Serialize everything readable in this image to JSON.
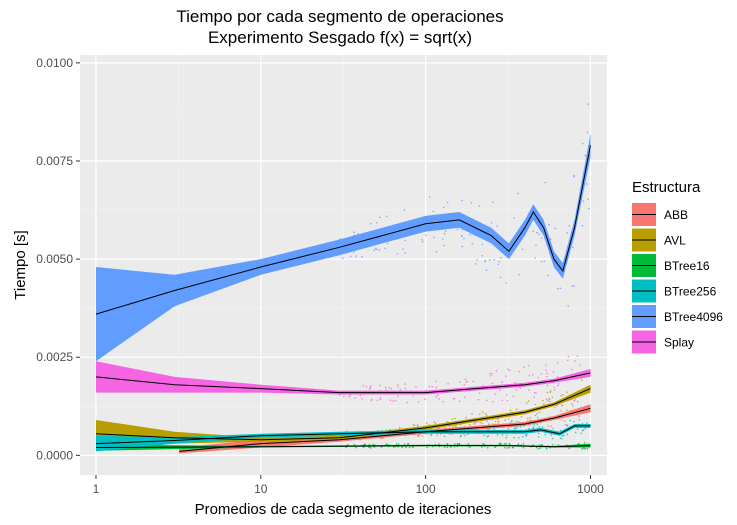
{
  "chart_data": {
    "type": "scatter",
    "title": "Tiempo por cada segmento de operaciones",
    "subtitle": "Experimento Sesgado f(x) = sqrt(x)",
    "xlabel": "Promedios de cada segmento de iteraciones",
    "ylabel": "Tiempo [s]",
    "x_scale": "log10",
    "xlim": [
      0.8,
      1260
    ],
    "ylim": [
      -0.0005,
      0.0102
    ],
    "x_ticks": [
      1,
      10,
      100,
      1000
    ],
    "x_tick_labels": [
      "1",
      "10",
      "100",
      "1000"
    ],
    "y_ticks": [
      0.0,
      0.0025,
      0.005,
      0.0075,
      0.01
    ],
    "y_tick_labels": [
      "0.0000",
      "0.0025",
      "0.0050",
      "0.0075",
      "0.0100"
    ],
    "grid": true,
    "legend": {
      "title": "Estructura",
      "position": "right"
    },
    "series": [
      {
        "name": "ABB",
        "color": "#F8766D",
        "x": [
          3.2,
          10,
          30,
          100,
          200,
          400,
          600,
          1000
        ],
        "y": [
          0.0001,
          0.0003,
          0.0004,
          0.0006,
          0.0007,
          0.0008,
          0.00095,
          0.0012
        ],
        "ymin": [
          5e-05,
          0.0002,
          0.00035,
          0.00055,
          0.00065,
          0.00075,
          0.0009,
          0.0011
        ],
        "ymax": [
          0.0002,
          0.0004,
          0.00045,
          0.00065,
          0.00075,
          0.00085,
          0.001,
          0.0013
        ]
      },
      {
        "name": "AVL",
        "color": "#B79F00",
        "x": [
          1,
          3,
          10,
          30,
          100,
          200,
          400,
          600,
          1000
        ],
        "y": [
          0.00055,
          0.00045,
          0.0004,
          0.00045,
          0.0007,
          0.0009,
          0.0011,
          0.0013,
          0.0017
        ],
        "ymin": [
          0.0002,
          0.0003,
          0.00035,
          0.0004,
          0.00065,
          0.00085,
          0.00105,
          0.00125,
          0.0016
        ],
        "ymax": [
          0.0009,
          0.0006,
          0.00045,
          0.0005,
          0.00075,
          0.00095,
          0.00115,
          0.00135,
          0.0018
        ]
      },
      {
        "name": "BTree16",
        "color": "#00BA38",
        "x": [
          1,
          10,
          100,
          300,
          600,
          1000
        ],
        "y": [
          0.0002,
          0.00022,
          0.00025,
          0.00025,
          0.00022,
          0.00025
        ],
        "ymin": [
          0.00012,
          0.0002,
          0.00023,
          0.00023,
          0.0002,
          0.0002
        ],
        "ymax": [
          0.00028,
          0.00024,
          0.00027,
          0.00027,
          0.00024,
          0.0003
        ]
      },
      {
        "name": "BTree256",
        "color": "#00BFC4",
        "x": [
          1,
          3,
          10,
          30,
          100,
          200,
          400,
          500,
          650,
          800,
          1000
        ],
        "y": [
          0.0003,
          0.00038,
          0.0005,
          0.00055,
          0.0006,
          0.0006,
          0.0006,
          0.00065,
          0.00055,
          0.00075,
          0.00075
        ],
        "ymin": [
          0.0001,
          0.0003,
          0.00045,
          0.0005,
          0.00055,
          0.00055,
          0.00055,
          0.0006,
          0.0005,
          0.0007,
          0.0007
        ],
        "ymax": [
          0.0005,
          0.00046,
          0.00055,
          0.0006,
          0.00065,
          0.00065,
          0.00065,
          0.0007,
          0.0006,
          0.0008,
          0.0008
        ]
      },
      {
        "name": "BTree4096",
        "color": "#619CFF",
        "x": [
          1,
          3,
          10,
          30,
          100,
          160,
          250,
          320,
          400,
          450,
          520,
          600,
          680,
          800,
          1000
        ],
        "y": [
          0.0036,
          0.0042,
          0.0048,
          0.0053,
          0.0059,
          0.006,
          0.0056,
          0.0052,
          0.0058,
          0.0062,
          0.0058,
          0.005,
          0.0047,
          0.0058,
          0.0079
        ],
        "ymin": [
          0.0024,
          0.0038,
          0.0046,
          0.0051,
          0.0057,
          0.0058,
          0.0054,
          0.005,
          0.0056,
          0.006,
          0.0056,
          0.0048,
          0.0045,
          0.0056,
          0.0076
        ],
        "ymax": [
          0.0048,
          0.0046,
          0.005,
          0.0055,
          0.0061,
          0.0062,
          0.0058,
          0.0054,
          0.006,
          0.0064,
          0.006,
          0.0052,
          0.0049,
          0.006,
          0.0082
        ]
      },
      {
        "name": "Splay",
        "color": "#F564E3",
        "x": [
          1,
          3,
          10,
          30,
          100,
          200,
          400,
          600,
          1000
        ],
        "y": [
          0.002,
          0.0018,
          0.0017,
          0.0016,
          0.0016,
          0.0017,
          0.0018,
          0.0019,
          0.0021
        ],
        "ymin": [
          0.0016,
          0.0016,
          0.0016,
          0.00155,
          0.00155,
          0.00165,
          0.00175,
          0.00185,
          0.002
        ],
        "ymax": [
          0.0024,
          0.002,
          0.0018,
          0.00165,
          0.00165,
          0.00175,
          0.00185,
          0.00195,
          0.0022
        ]
      }
    ]
  }
}
